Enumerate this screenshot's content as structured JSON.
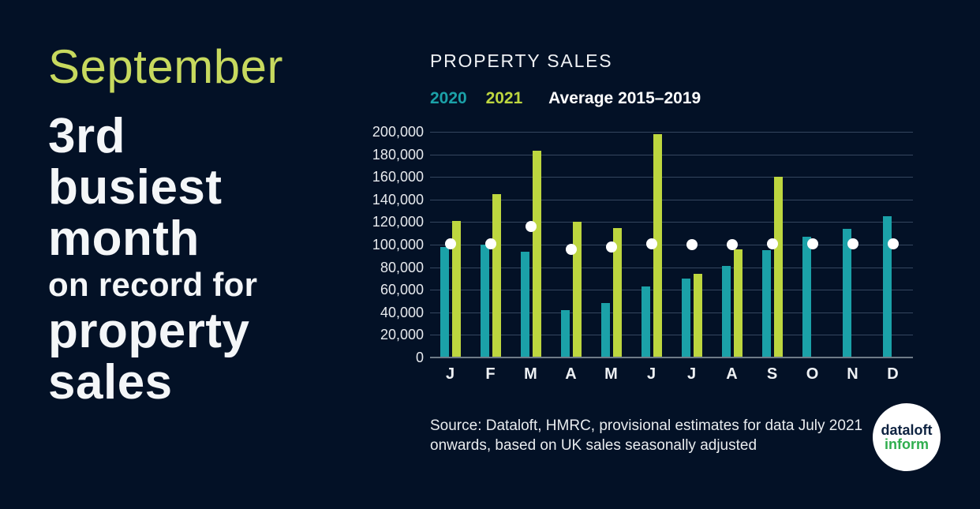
{
  "page": {
    "background_color": "#031126",
    "text_color": "#f4f6f8"
  },
  "headline": {
    "month_word": "September",
    "month_word_color": "#c7d95e",
    "line_3rd": "3rd",
    "line_busiest": "busiest",
    "line_month": "month",
    "line_on_record": "on record for",
    "line_property": "property",
    "line_sales": "sales"
  },
  "chart": {
    "title": "PROPERTY SALES"
  },
  "chart_data": {
    "type": "bar",
    "title": "PROPERTY SALES",
    "categories": [
      "J",
      "F",
      "M",
      "A",
      "M",
      "J",
      "J",
      "A",
      "S",
      "O",
      "N",
      "D"
    ],
    "series": [
      {
        "name": "2020",
        "render": "bar",
        "color": "#1ba1a8",
        "values": [
          98000,
          100000,
          94000,
          42000,
          48000,
          63000,
          70000,
          81000,
          95000,
          107000,
          114000,
          125000
        ]
      },
      {
        "name": "2021",
        "render": "bar",
        "color": "#bdd63f",
        "values": [
          121000,
          145000,
          183000,
          120000,
          115000,
          198000,
          74000,
          96000,
          160000,
          null,
          null,
          null
        ]
      },
      {
        "name": "Average 2015–2019",
        "render": "dot",
        "color": "#ffffff",
        "values": [
          101000,
          101000,
          116000,
          96000,
          98000,
          101000,
          100000,
          100000,
          101000,
          101000,
          101000,
          101000
        ]
      }
    ],
    "ylim": [
      0,
      200000
    ],
    "ytick_step": 20000,
    "grid": true,
    "gridline_color": "#35465f",
    "baseline_color": "#6f7b88",
    "legend_position": "top",
    "xlabel": "",
    "ylabel": ""
  },
  "source": {
    "line1": "Source: Dataloft, HMRC, provisional estimates for data July 2021",
    "line2": "onwards, based on UK sales seasonally adjusted"
  },
  "logo": {
    "line1": "dataloft",
    "line2": "inform",
    "circle_color": "#ffffff",
    "line1_color": "#0d2240",
    "line2_color": "#2fae4e"
  }
}
